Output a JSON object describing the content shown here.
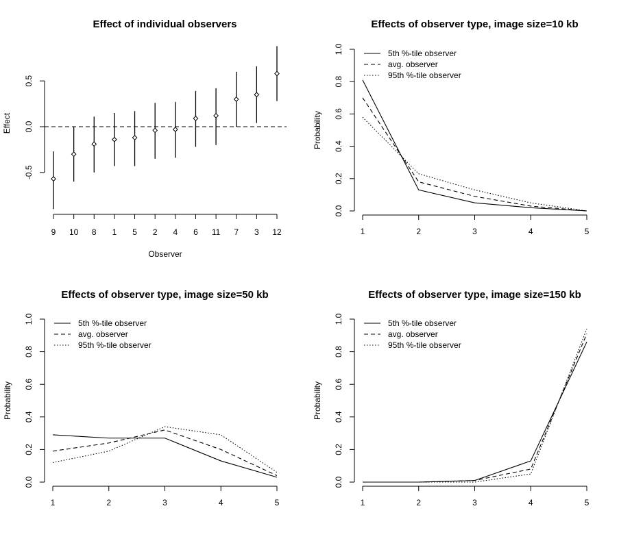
{
  "chart_data": [
    {
      "type": "scatter",
      "title": "Effect of individual observers",
      "xlabel": "Observer",
      "ylabel": "Effect",
      "categories": [
        "9",
        "10",
        "8",
        "1",
        "5",
        "2",
        "4",
        "6",
        "11",
        "7",
        "3",
        "12"
      ],
      "series": [
        {
          "values": [
            -0.57,
            -0.3,
            -0.19,
            -0.14,
            -0.12,
            -0.04,
            -0.03,
            0.09,
            0.12,
            0.3,
            0.35,
            0.58
          ],
          "lower": [
            -0.9,
            -0.6,
            -0.5,
            -0.43,
            -0.43,
            -0.35,
            -0.34,
            -0.22,
            -0.2,
            0.0,
            0.04,
            0.28
          ],
          "upper": [
            -0.27,
            0.0,
            0.11,
            0.15,
            0.17,
            0.26,
            0.27,
            0.39,
            0.42,
            0.6,
            0.66,
            0.88
          ]
        }
      ],
      "reference_line": 0,
      "ylim": [
        -0.95,
        0.95
      ],
      "yticks": [
        "-0.5",
        "0.0",
        "0.5"
      ],
      "grid": false
    },
    {
      "type": "line",
      "title": "Effects of observer type, image size=10 kb",
      "xlabel": "",
      "ylabel": "Probability",
      "x": [
        1,
        2,
        3,
        4,
        5
      ],
      "xticks": [
        "1",
        "2",
        "3",
        "4",
        "5"
      ],
      "yticks": [
        "0.0",
        "0.2",
        "0.4",
        "0.6",
        "0.8",
        "1.0"
      ],
      "ylim": [
        0,
        1
      ],
      "legend_position": "top-left",
      "series": [
        {
          "name": "5th %-tile observer",
          "style": "solid",
          "values": [
            0.81,
            0.13,
            0.05,
            0.02,
            0.0
          ]
        },
        {
          "name": "avg. observer",
          "style": "dashed",
          "values": [
            0.7,
            0.18,
            0.09,
            0.03,
            0.0
          ]
        },
        {
          "name": "95th %-tile observer",
          "style": "dotted",
          "values": [
            0.58,
            0.23,
            0.13,
            0.05,
            0.0
          ]
        }
      ],
      "grid": false
    },
    {
      "type": "line",
      "title": "Effects of observer type, image size=50 kb",
      "xlabel": "",
      "ylabel": "Probability",
      "x": [
        1,
        2,
        3,
        4,
        5
      ],
      "xticks": [
        "1",
        "2",
        "3",
        "4",
        "5"
      ],
      "yticks": [
        "0.0",
        "0.2",
        "0.4",
        "0.6",
        "0.8",
        "1.0"
      ],
      "ylim": [
        0,
        1
      ],
      "legend_position": "top-left",
      "series": [
        {
          "name": "5th %-tile observer",
          "style": "solid",
          "values": [
            0.29,
            0.27,
            0.27,
            0.13,
            0.03
          ]
        },
        {
          "name": "avg. observer",
          "style": "dashed",
          "values": [
            0.19,
            0.24,
            0.32,
            0.2,
            0.04
          ]
        },
        {
          "name": "95th %-tile observer",
          "style": "dotted",
          "values": [
            0.12,
            0.19,
            0.34,
            0.29,
            0.06
          ]
        }
      ],
      "grid": false
    },
    {
      "type": "line",
      "title": "Effects of observer type, image size=150 kb",
      "xlabel": "",
      "ylabel": "Probability",
      "x": [
        1,
        2,
        3,
        4,
        5
      ],
      "xticks": [
        "1",
        "2",
        "3",
        "4",
        "5"
      ],
      "yticks": [
        "0.0",
        "0.2",
        "0.4",
        "0.6",
        "0.8",
        "1.0"
      ],
      "ylim": [
        0,
        1
      ],
      "legend_position": "top-left",
      "series": [
        {
          "name": "5th %-tile observer",
          "style": "solid",
          "values": [
            0.0,
            0.0,
            0.01,
            0.13,
            0.86
          ]
        },
        {
          "name": "avg. observer",
          "style": "dashed",
          "values": [
            0.0,
            0.0,
            0.01,
            0.08,
            0.91
          ]
        },
        {
          "name": "95th %-tile observer",
          "style": "dotted",
          "values": [
            0.0,
            0.0,
            0.0,
            0.05,
            0.94
          ]
        }
      ],
      "grid": false
    }
  ]
}
